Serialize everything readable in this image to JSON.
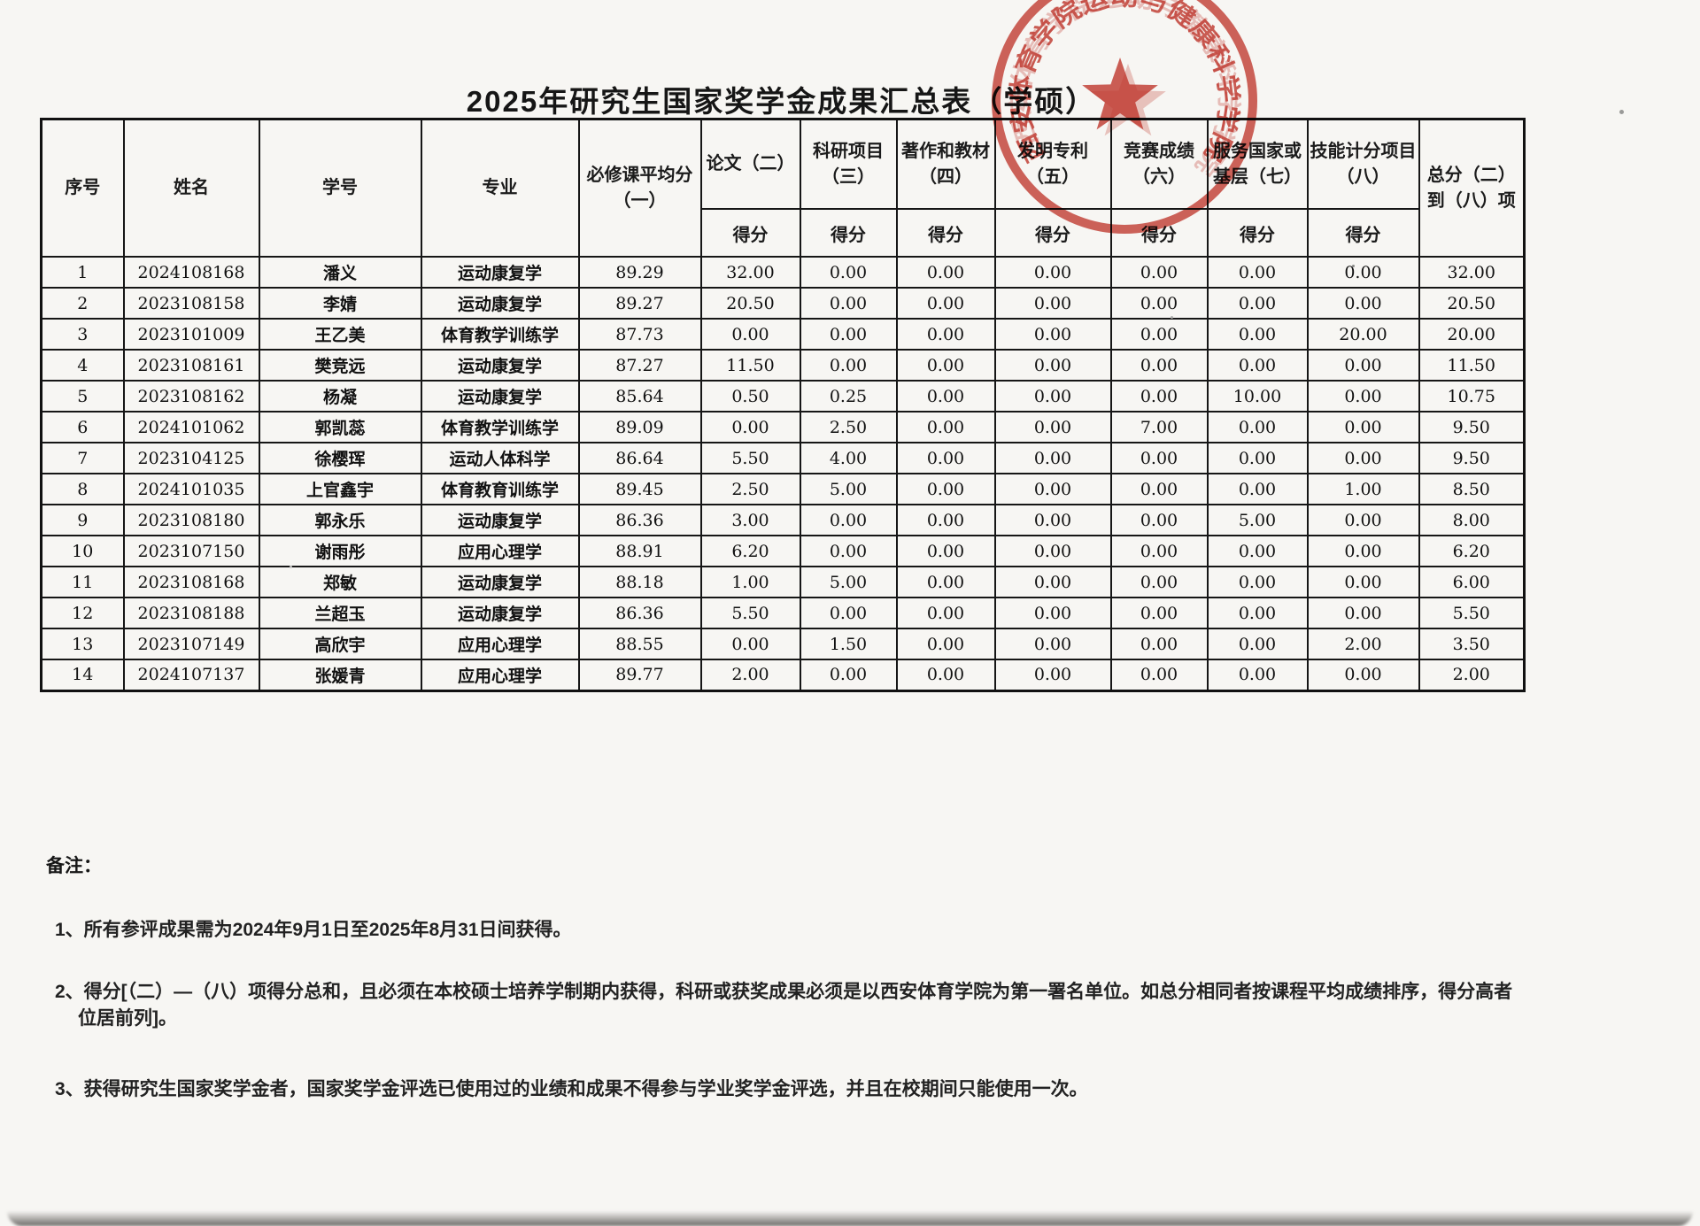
{
  "page": {
    "title": "2025年研究生国家奖学金成果汇总表（学硕）"
  },
  "stamp": {
    "ring_text": "西安体育学院运动与健康科学学院",
    "color": "#c0392b",
    "icon": "star"
  },
  "table": {
    "col_headers": [
      "序号",
      "姓名",
      "学号",
      "专业",
      "必修课平均分（一）",
      "论文（二）",
      "科研项目（三）",
      "著作和教材（四）",
      "发明专利（五）",
      "竞赛成绩（六）",
      "服务国家或基层（七）",
      "技能计分项目（八）",
      "总分（二）到（八）项"
    ],
    "score_subheader": "得分",
    "rows": [
      [
        "1",
        "2024108168",
        "潘义",
        "运动康复学",
        "89.29",
        "32.00",
        "0.00",
        "0.00",
        "0.00",
        "0.00",
        "0.00",
        "0.00",
        "32.00"
      ],
      [
        "2",
        "2023108158",
        "李婧",
        "运动康复学",
        "89.27",
        "20.50",
        "0.00",
        "0.00",
        "0.00",
        "0.00",
        "0.00",
        "0.00",
        "20.50"
      ],
      [
        "3",
        "2023101009",
        "王乙美",
        "体育教学训练学",
        "87.73",
        "0.00",
        "0.00",
        "0.00",
        "0.00",
        "0.00",
        "0.00",
        "20.00",
        "20.00"
      ],
      [
        "4",
        "2023108161",
        "樊竞远",
        "运动康复学",
        "87.27",
        "11.50",
        "0.00",
        "0.00",
        "0.00",
        "0.00",
        "0.00",
        "0.00",
        "11.50"
      ],
      [
        "5",
        "2023108162",
        "杨凝",
        "运动康复学",
        "85.64",
        "0.50",
        "0.25",
        "0.00",
        "0.00",
        "0.00",
        "10.00",
        "0.00",
        "10.75"
      ],
      [
        "6",
        "2024101062",
        "郭凯蕊",
        "体育教学训练学",
        "89.09",
        "0.00",
        "2.50",
        "0.00",
        "0.00",
        "7.00",
        "0.00",
        "0.00",
        "9.50"
      ],
      [
        "7",
        "2023104125",
        "徐樱珲",
        "运动人体科学",
        "86.64",
        "5.50",
        "4.00",
        "0.00",
        "0.00",
        "0.00",
        "0.00",
        "0.00",
        "9.50"
      ],
      [
        "8",
        "2024101035",
        "上官鑫宇",
        "体育教育训练学",
        "89.45",
        "2.50",
        "5.00",
        "0.00",
        "0.00",
        "0.00",
        "0.00",
        "1.00",
        "8.50"
      ],
      [
        "9",
        "2023108180",
        "郭永乐",
        "运动康复学",
        "86.36",
        "3.00",
        "0.00",
        "0.00",
        "0.00",
        "0.00",
        "5.00",
        "0.00",
        "8.00"
      ],
      [
        "10",
        "2023107150",
        "谢雨彤",
        "应用心理学",
        "88.91",
        "6.20",
        "0.00",
        "0.00",
        "0.00",
        "0.00",
        "0.00",
        "0.00",
        "6.20"
      ],
      [
        "11",
        "2023108168",
        "郑敏",
        "运动康复学",
        "88.18",
        "1.00",
        "5.00",
        "0.00",
        "0.00",
        "0.00",
        "0.00",
        "0.00",
        "6.00"
      ],
      [
        "12",
        "2023108188",
        "兰超玉",
        "运动康复学",
        "86.36",
        "5.50",
        "0.00",
        "0.00",
        "0.00",
        "0.00",
        "0.00",
        "0.00",
        "5.50"
      ],
      [
        "13",
        "2023107149",
        "高欣宇",
        "应用心理学",
        "88.55",
        "0.00",
        "1.50",
        "0.00",
        "0.00",
        "0.00",
        "0.00",
        "2.00",
        "3.50"
      ],
      [
        "14",
        "2024107137",
        "张媛青",
        "应用心理学",
        "89.77",
        "2.00",
        "0.00",
        "0.00",
        "0.00",
        "0.00",
        "0.00",
        "0.00",
        "2.00"
      ]
    ]
  },
  "notes": {
    "heading": "备注：",
    "items": [
      "1、所有参评成果需为2024年9月1日至2025年8月31日间获得。",
      "2、得分[（二）—（八）项得分总和，且必须在本校硕士培养学制期内获得，科研或获奖成果必须是以西安体育学院为第一署名单位。如总分相同者按课程平均成绩排序，得分高者位居前列]。",
      "3、获得研究生国家奖学金者，国家奖学金评选已使用过的业绩和成果不得参与学业奖学金评选，并且在校期间只能使用一次。"
    ]
  }
}
